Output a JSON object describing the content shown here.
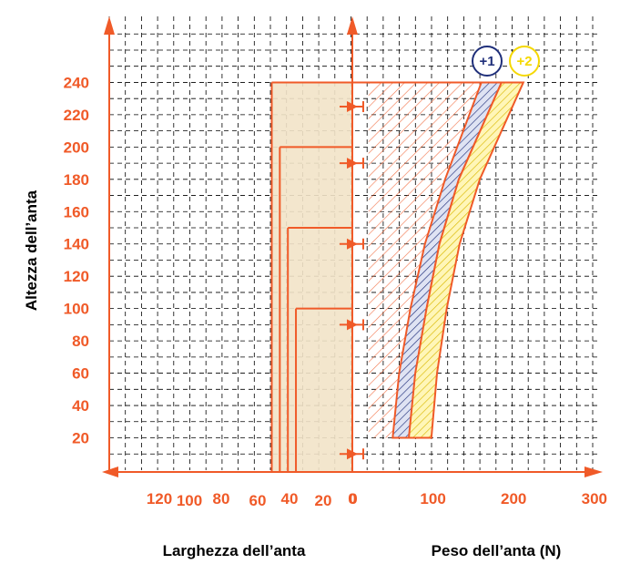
{
  "chart_data": {
    "type": "area",
    "ylabel": "Altezza dell’anta",
    "xlabel_left": "Larghezza dell’anta",
    "xlabel_right": "Peso dell’anta (N)",
    "y_ticks": [
      "20",
      "40",
      "60",
      "80",
      "100",
      "120",
      "140",
      "160",
      "180",
      "200",
      "220",
      "240"
    ],
    "x_ticks_left": [
      "120",
      "100",
      "80",
      "60",
      "40",
      "20",
      "0"
    ],
    "x_ticks_right": [
      "0",
      "100",
      "200",
      "300"
    ],
    "ylim": [
      0,
      270
    ],
    "xlim_right": [
      0,
      300
    ],
    "xlim_left": [
      0,
      140
    ],
    "grid": true,
    "arrow_heights": [
      10,
      90,
      140,
      190,
      225
    ],
    "width_steps": [
      {
        "width": 50,
        "height": 240
      },
      {
        "width": 45,
        "height": 200
      },
      {
        "width": 40,
        "height": 150
      },
      {
        "width": 35,
        "height": 100
      }
    ],
    "hatched_region": {
      "weight_range": [
        20,
        170
      ],
      "height_range": [
        20,
        240
      ]
    },
    "series": [
      {
        "name": "+1",
        "color": "#1f2f7a",
        "lower": [
          [
            50,
            20
          ],
          [
            58,
            60
          ],
          [
            72,
            100
          ],
          [
            90,
            140
          ],
          [
            115,
            180
          ],
          [
            160,
            240
          ]
        ],
        "upper": [
          [
            75,
            20
          ],
          [
            80,
            60
          ],
          [
            92,
            100
          ],
          [
            108,
            140
          ],
          [
            132,
            180
          ],
          [
            185,
            240
          ]
        ]
      },
      {
        "name": "+2",
        "color": "#f5d800",
        "lower": [
          [
            70,
            20
          ],
          [
            78,
            60
          ],
          [
            92,
            100
          ],
          [
            108,
            140
          ],
          [
            132,
            180
          ],
          [
            185,
            240
          ]
        ],
        "upper": [
          [
            98,
            20
          ],
          [
            105,
            60
          ],
          [
            117,
            100
          ],
          [
            133,
            140
          ],
          [
            158,
            180
          ],
          [
            212,
            240
          ]
        ]
      }
    ],
    "colors": {
      "axis": "#f05a28",
      "shade": "#f2e3c8",
      "grid": "#000000"
    }
  }
}
